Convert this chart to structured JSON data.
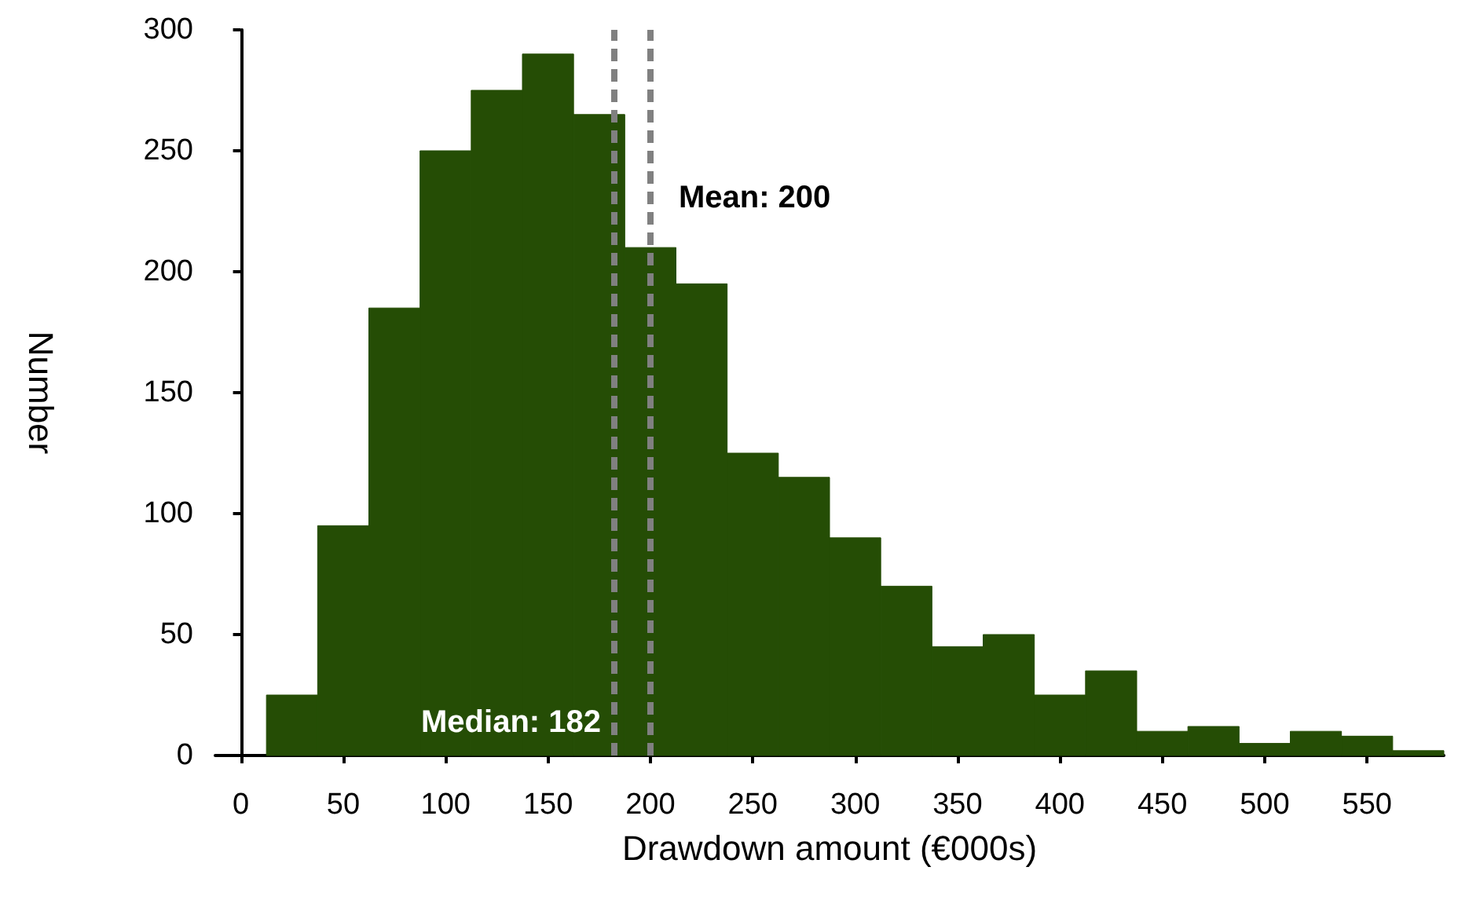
{
  "chart_data": {
    "type": "histogram",
    "xlabel": "Drawdown amount (€000s)",
    "ylabel": "Number",
    "color": "#254d05",
    "bins": [
      12.5,
      37.5,
      62.5,
      87.5,
      112.5,
      137.5,
      162.5,
      187.5,
      212.5,
      237.5,
      262.5,
      287.5,
      312.5,
      337.5,
      362.5,
      387.5,
      412.5,
      437.5,
      462.5,
      487.5,
      512.5,
      537.5,
      562.5,
      587.5
    ],
    "values": [
      25,
      95,
      185,
      250,
      275,
      290,
      265,
      210,
      195,
      125,
      115,
      90,
      70,
      45,
      50,
      25,
      35,
      10,
      12,
      5,
      10,
      8,
      2
    ],
    "xlim": [
      -12.5,
      587.5
    ],
    "xticks": [
      0,
      50,
      100,
      150,
      200,
      250,
      300,
      350,
      400,
      450,
      500,
      550
    ],
    "ylim": [
      0,
      300
    ],
    "yticks": [
      0,
      50,
      100,
      150,
      200,
      250,
      300
    ],
    "grid": false,
    "ref_lines": [
      {
        "axis": "x",
        "value": 182,
        "label": "Median: 182",
        "color": "#808080",
        "line_style": "dashed"
      },
      {
        "axis": "x",
        "value": 200,
        "label": "Mean: 200",
        "color": "#808080",
        "line_style": "dashed"
      }
    ]
  }
}
